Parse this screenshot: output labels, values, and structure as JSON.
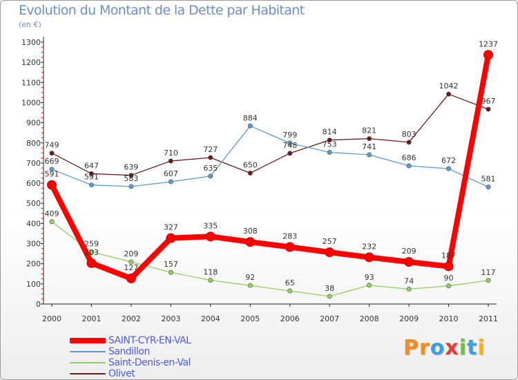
{
  "chart_data": {
    "type": "line",
    "title": "Evolution du Montant de la Dette par Habitant",
    "subtitle": "(en €)",
    "x": [
      "2000",
      "2001",
      "2002",
      "2003",
      "2004",
      "2005",
      "2006",
      "2007",
      "2008",
      "2009",
      "2010",
      "2011"
    ],
    "ylim": [
      0,
      1300
    ],
    "yticks": [
      "0",
      "100",
      "200",
      "300",
      "400",
      "500",
      "600",
      "700",
      "800",
      "900",
      "1000",
      "1100",
      "1200",
      "1300"
    ],
    "grid": false,
    "legend_position": "bottom-left",
    "series": [
      {
        "name": "SAINT-CYR-EN-VAL",
        "color": "#ff0000",
        "values": [
          591,
          203,
          127,
          327,
          335,
          308,
          283,
          257,
          232,
          209,
          187,
          1237
        ]
      },
      {
        "name": "Sandillon",
        "color": "#5b9bd5",
        "values": [
          669,
          591,
          583,
          607,
          635,
          884,
          799,
          753,
          741,
          686,
          672,
          581
        ]
      },
      {
        "name": "Saint-Denis-en-Val",
        "color": "#8ed15a",
        "values": [
          409,
          259,
          209,
          157,
          118,
          92,
          65,
          38,
          93,
          74,
          90,
          117
        ]
      },
      {
        "name": "Olivet",
        "color": "#6b1a1a",
        "values": [
          749,
          647,
          639,
          710,
          727,
          650,
          748,
          814,
          821,
          803,
          1042,
          967
        ]
      }
    ]
  },
  "logo": {
    "letters": [
      "P",
      "r",
      "o",
      "x",
      "i",
      "t",
      "i"
    ],
    "colors": [
      "#f28c1e",
      "#f28c1e",
      "#3b9fe0",
      "#e53935",
      "#6cbf3a",
      "#3b9fe0",
      "#f2b01e"
    ]
  }
}
